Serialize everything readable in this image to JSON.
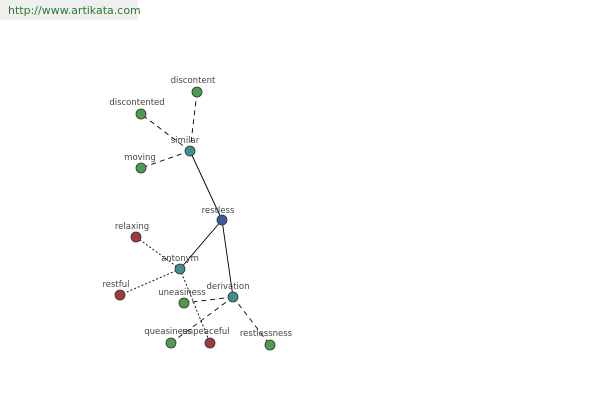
{
  "header": {
    "url": "http://www.artikata.com"
  },
  "nodes": [
    {
      "label": "restless"
    },
    {
      "label": "similar"
    },
    {
      "label": "antonym"
    },
    {
      "label": "derivation"
    },
    {
      "label": "discontent"
    },
    {
      "label": "discontented"
    },
    {
      "label": "moving"
    },
    {
      "label": "relaxing"
    },
    {
      "label": "restful"
    },
    {
      "label": "uneasiness"
    },
    {
      "label": "queasiness"
    },
    {
      "label": "unpeaceful"
    },
    {
      "label": "restlessness"
    }
  ]
}
